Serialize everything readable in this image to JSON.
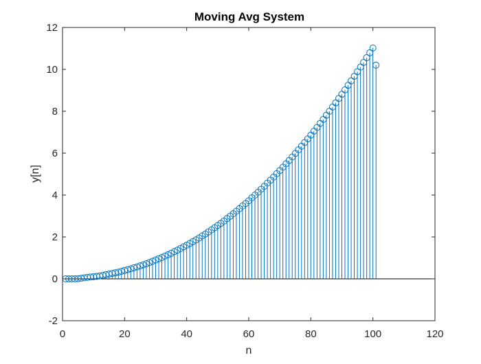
{
  "chart_data": {
    "type": "stem",
    "title": "Moving Avg System",
    "xlabel": "n",
    "ylabel": "y[n]",
    "xlim": [
      0,
      120
    ],
    "ylim": [
      -2,
      12
    ],
    "xticks": [
      0,
      20,
      40,
      60,
      80,
      100,
      120
    ],
    "yticks": [
      -2,
      0,
      2,
      4,
      6,
      8,
      10,
      12
    ],
    "baseline": 0,
    "grid": false,
    "marker": "open-circle",
    "color": "#0072bd",
    "series": [
      {
        "x": [
          1,
          2,
          3,
          4,
          5,
          6,
          7,
          8,
          9,
          10,
          11,
          12,
          13,
          14,
          15,
          16,
          17,
          18,
          19,
          20,
          21,
          22,
          23,
          24,
          25,
          26,
          27,
          28,
          29,
          30,
          31,
          32,
          33,
          34,
          35,
          36,
          37,
          38,
          39,
          40,
          41,
          42,
          43,
          44,
          45,
          46,
          47,
          48,
          49,
          50,
          51,
          52,
          53,
          54,
          55,
          56,
          57,
          58,
          59,
          60,
          61,
          62,
          63,
          64,
          65,
          66,
          67,
          68,
          69,
          70,
          71,
          72,
          73,
          74,
          75,
          76,
          77,
          78,
          79,
          80,
          81,
          82,
          83,
          84,
          85,
          86,
          87,
          88,
          89,
          90,
          91,
          92,
          93,
          94,
          95,
          96,
          97,
          98,
          99,
          100,
          101
        ],
        "y": [
          0,
          0,
          0,
          0,
          0.01,
          0.03,
          0.05,
          0.07,
          0.09,
          0.1,
          0.12,
          0.14,
          0.17,
          0.2,
          0.23,
          0.26,
          0.29,
          0.32,
          0.36,
          0.4,
          0.44,
          0.48,
          0.53,
          0.57,
          0.62,
          0.67,
          0.72,
          0.78,
          0.84,
          0.9,
          0.96,
          1.02,
          1.09,
          1.15,
          1.22,
          1.3,
          1.37,
          1.45,
          1.53,
          1.61,
          1.69,
          1.78,
          1.86,
          1.95,
          2.05,
          2.14,
          2.24,
          2.34,
          2.44,
          2.55,
          2.65,
          2.76,
          2.88,
          2.99,
          3.11,
          3.23,
          3.35,
          3.48,
          3.6,
          3.73,
          3.87,
          4,
          4.14,
          4.28,
          4.42,
          4.57,
          4.71,
          4.86,
          5.02,
          5.17,
          5.33,
          5.49,
          5.65,
          5.82,
          5.99,
          6.16,
          6.33,
          6.51,
          6.68,
          6.86,
          7.05,
          7.23,
          7.42,
          7.61,
          7.81,
          8,
          8.2,
          8.4,
          8.61,
          8.81,
          9.02,
          9.24,
          9.45,
          9.67,
          9.89,
          10.11,
          10.33,
          10.56,
          10.79,
          11.02,
          10.2
        ]
      }
    ]
  }
}
